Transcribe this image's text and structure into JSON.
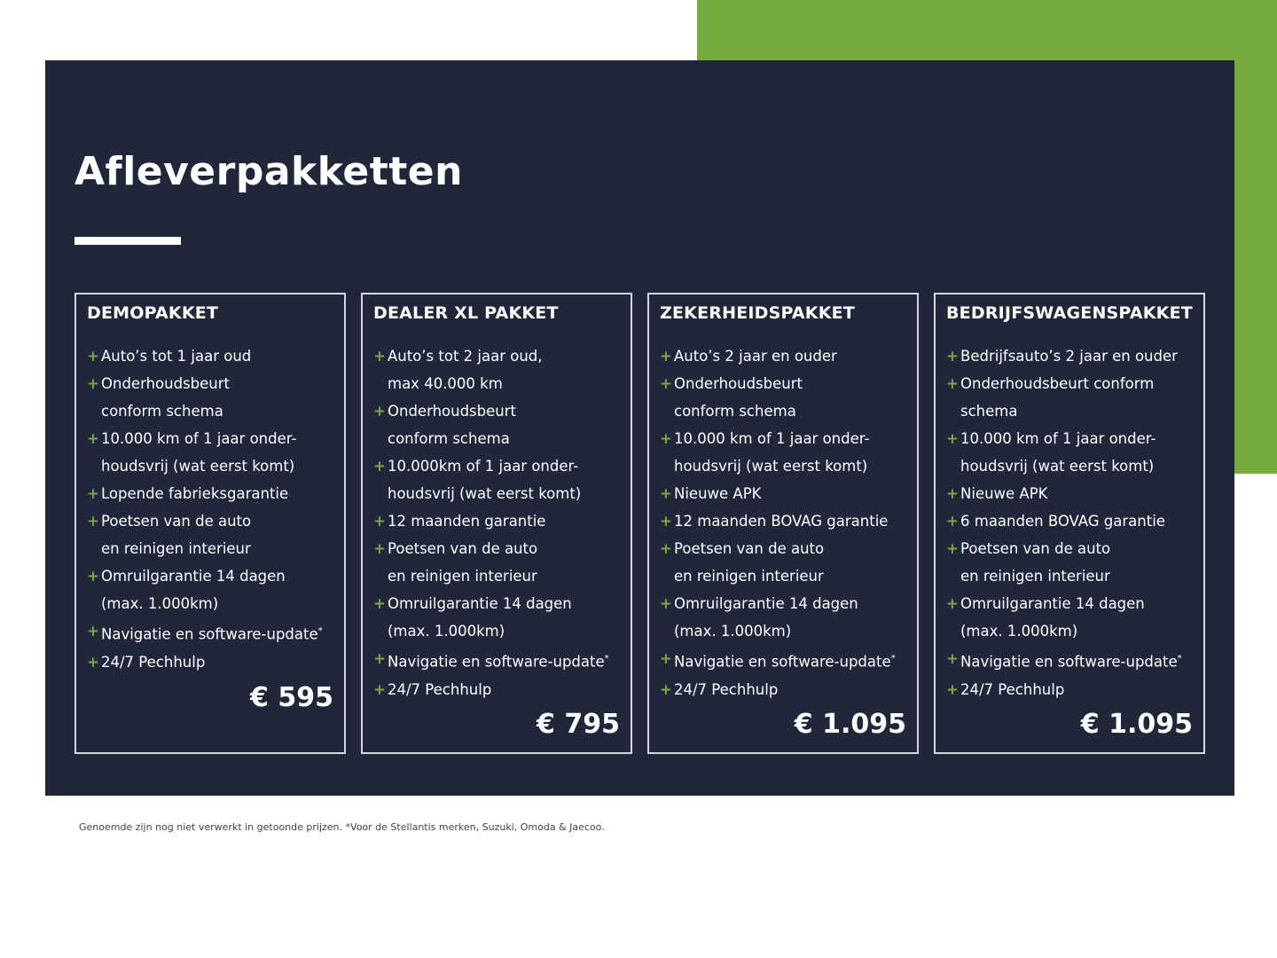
{
  "title": "Afleverpakketten",
  "colors": {
    "accent": "#74ac40",
    "panel": "#21263b"
  },
  "packages": [
    {
      "name": "DEMOPAKKET",
      "price": "€ 595",
      "items": [
        {
          "lines": [
            "Auto’s tot 1 jaar oud"
          ]
        },
        {
          "lines": [
            "Onderhoudsbeurt",
            "conform schema"
          ]
        },
        {
          "lines": [
            "10.000 km of 1 jaar onder-",
            "houdsvrij (wat eerst komt)"
          ]
        },
        {
          "lines": [
            "Lopende fabrieksgarantie"
          ]
        },
        {
          "lines": [
            "Poetsen van de auto",
            "en reinigen interieur"
          ]
        },
        {
          "lines": [
            "Omruilgarantie 14 dagen",
            "(max. 1.000km)"
          ]
        },
        {
          "lines": [
            "Navigatie en software-update"
          ],
          "sup": "*"
        },
        {
          "lines": [
            "24/7 Pechhulp"
          ]
        }
      ]
    },
    {
      "name": "DEALER XL PAKKET",
      "price": "€ 795",
      "items": [
        {
          "lines": [
            "Auto’s tot 2 jaar oud,",
            "max 40.000 km"
          ]
        },
        {
          "lines": [
            "Onderhoudsbeurt",
            "conform schema"
          ]
        },
        {
          "lines": [
            "10.000km of 1 jaar onder-",
            "houdsvrij (wat eerst komt)"
          ]
        },
        {
          "lines": [
            "12 maanden garantie"
          ]
        },
        {
          "lines": [
            "Poetsen van de auto",
            "en reinigen interieur"
          ]
        },
        {
          "lines": [
            "Omruilgarantie 14 dagen",
            "(max. 1.000km)"
          ]
        },
        {
          "lines": [
            "Navigatie en software-update"
          ],
          "sup": "*"
        },
        {
          "lines": [
            "24/7 Pechhulp"
          ]
        }
      ]
    },
    {
      "name": "ZEKERHEIDSPAKKET",
      "price": "€ 1.095",
      "items": [
        {
          "lines": [
            "Auto’s 2 jaar en ouder"
          ]
        },
        {
          "lines": [
            "Onderhoudsbeurt",
            "conform schema"
          ]
        },
        {
          "lines": [
            "10.000 km of 1 jaar onder-",
            "houdsvrij (wat eerst komt)"
          ]
        },
        {
          "lines": [
            "Nieuwe APK"
          ]
        },
        {
          "lines": [
            "12 maanden BOVAG garantie"
          ]
        },
        {
          "lines": [
            "Poetsen van de auto",
            "en reinigen interieur"
          ]
        },
        {
          "lines": [
            "Omruilgarantie 14 dagen",
            "(max. 1.000km)"
          ]
        },
        {
          "lines": [
            "Navigatie en software-update"
          ],
          "sup": "*"
        },
        {
          "lines": [
            "24/7 Pechhulp"
          ]
        }
      ]
    },
    {
      "name": "BEDRIJFSWAGENSPAKKET",
      "price": "€ 1.095",
      "items": [
        {
          "lines": [
            "Bedrijfsauto’s 2 jaar en ouder"
          ]
        },
        {
          "lines": [
            "Onderhoudsbeurt conform",
            "schema"
          ]
        },
        {
          "lines": [
            "10.000 km of 1 jaar onder-",
            "houdsvrij (wat eerst komt)"
          ]
        },
        {
          "lines": [
            "Nieuwe APK"
          ]
        },
        {
          "lines": [
            "6 maanden BOVAG garantie"
          ]
        },
        {
          "lines": [
            "Poetsen van de auto",
            "en reinigen interieur"
          ]
        },
        {
          "lines": [
            "Omruilgarantie 14 dagen",
            "(max. 1.000km)"
          ]
        },
        {
          "lines": [
            "Navigatie en software-update"
          ],
          "sup": "*"
        },
        {
          "lines": [
            "24/7 Pechhulp"
          ]
        }
      ]
    }
  ],
  "plus": "+",
  "footnote": "Genoemde zijn nog niet verwerkt in getoonde prijzen. *Voor de Stellantis merken, Suzuki, Omoda & Jaecoo."
}
